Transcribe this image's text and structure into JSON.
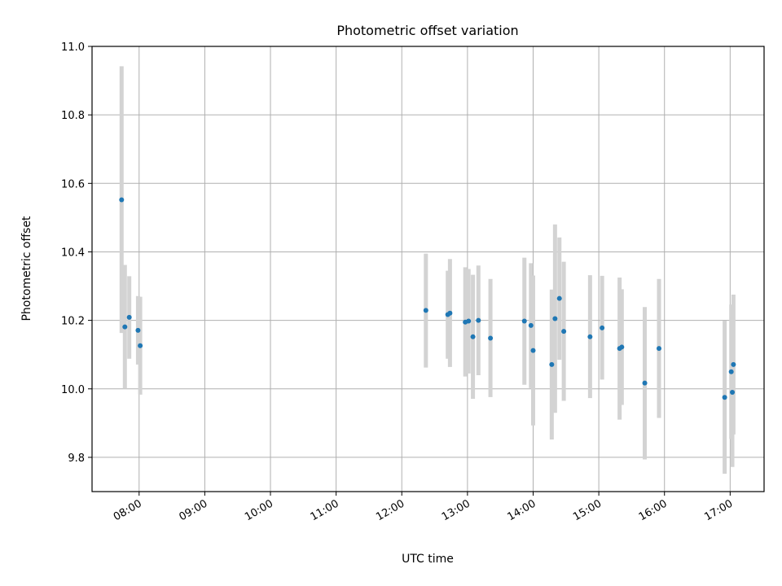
{
  "chart_data": {
    "type": "scatter",
    "title": "Photometric offset variation",
    "xlabel": "UTC time",
    "ylabel": "Photometric offset",
    "xlim": [
      "07:17",
      "17:31"
    ],
    "ylim": [
      9.7,
      11.0
    ],
    "yticks": [
      "9.8",
      "10.0",
      "10.2",
      "10.4",
      "10.6",
      "10.8",
      "11.0"
    ],
    "xticks": [
      "08:00",
      "09:00",
      "10:00",
      "11:00",
      "12:00",
      "13:00",
      "14:00",
      "15:00",
      "16:00",
      "17:00"
    ],
    "grid": true,
    "colors": {
      "point": "#1f77b4",
      "errorbar": "#d3d3d3",
      "grid": "#b0b0b0"
    },
    "points": [
      {
        "t": "07:44",
        "y": 10.552,
        "ylo": 10.163,
        "yhi": 10.942
      },
      {
        "t": "07:47",
        "y": 10.181,
        "ylo": 10.0,
        "yhi": 10.362
      },
      {
        "t": "07:51",
        "y": 10.209,
        "ylo": 10.088,
        "yhi": 10.329
      },
      {
        "t": "07:59",
        "y": 10.171,
        "ylo": 10.071,
        "yhi": 10.271
      },
      {
        "t": "08:01",
        "y": 10.126,
        "ylo": 9.983,
        "yhi": 10.269
      },
      {
        "t": "12:22",
        "y": 10.229,
        "ylo": 10.062,
        "yhi": 10.395
      },
      {
        "t": "12:42",
        "y": 10.217,
        "ylo": 10.088,
        "yhi": 10.345
      },
      {
        "t": "12:44",
        "y": 10.221,
        "ylo": 10.064,
        "yhi": 10.379
      },
      {
        "t": "12:58",
        "y": 10.195,
        "ylo": 10.036,
        "yhi": 10.355
      },
      {
        "t": "13:01",
        "y": 10.198,
        "ylo": 10.045,
        "yhi": 10.35
      },
      {
        "t": "13:05",
        "y": 10.152,
        "ylo": 9.971,
        "yhi": 10.333
      },
      {
        "t": "13:10",
        "y": 10.2,
        "ylo": 10.04,
        "yhi": 10.36
      },
      {
        "t": "13:21",
        "y": 10.148,
        "ylo": 9.976,
        "yhi": 10.321
      },
      {
        "t": "13:52",
        "y": 10.198,
        "ylo": 10.012,
        "yhi": 10.383
      },
      {
        "t": "13:58",
        "y": 10.185,
        "ylo": 10.002,
        "yhi": 10.367
      },
      {
        "t": "14:00",
        "y": 10.112,
        "ylo": 9.893,
        "yhi": 10.331
      },
      {
        "t": "14:17",
        "y": 10.071,
        "ylo": 9.852,
        "yhi": 10.29
      },
      {
        "t": "14:20",
        "y": 10.205,
        "ylo": 9.93,
        "yhi": 10.48
      },
      {
        "t": "14:24",
        "y": 10.264,
        "ylo": 10.085,
        "yhi": 10.442
      },
      {
        "t": "14:28",
        "y": 10.168,
        "ylo": 9.965,
        "yhi": 10.371
      },
      {
        "t": "14:52",
        "y": 10.152,
        "ylo": 9.973,
        "yhi": 10.332
      },
      {
        "t": "15:03",
        "y": 10.178,
        "ylo": 10.027,
        "yhi": 10.33
      },
      {
        "t": "15:19",
        "y": 10.118,
        "ylo": 9.91,
        "yhi": 10.325
      },
      {
        "t": "15:21",
        "y": 10.122,
        "ylo": 9.953,
        "yhi": 10.291
      },
      {
        "t": "15:42",
        "y": 10.017,
        "ylo": 9.794,
        "yhi": 10.239
      },
      {
        "t": "15:55",
        "y": 10.118,
        "ylo": 9.915,
        "yhi": 10.321
      },
      {
        "t": "16:55",
        "y": 9.975,
        "ylo": 9.752,
        "yhi": 10.199
      },
      {
        "t": "17:01",
        "y": 10.05,
        "ylo": 9.854,
        "yhi": 10.246
      },
      {
        "t": "17:02",
        "y": 9.99,
        "ylo": 9.772,
        "yhi": 10.208
      },
      {
        "t": "17:03",
        "y": 10.071,
        "ylo": 9.867,
        "yhi": 10.275
      }
    ]
  }
}
